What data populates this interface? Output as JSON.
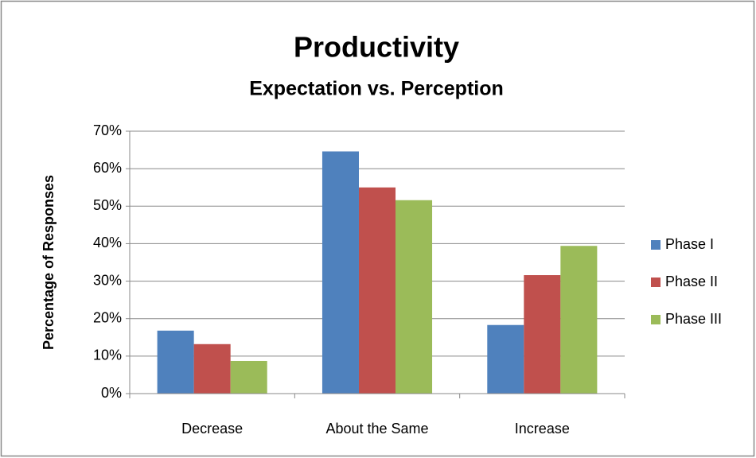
{
  "chart_data": {
    "type": "bar",
    "title": "Productivity",
    "subtitle": "Expectation vs. Perception",
    "y_label": "Percentage of Responses",
    "categories": [
      "Decrease",
      "About the Same",
      "Increase"
    ],
    "series": [
      {
        "name": "Phase I",
        "color": "#4f81bd",
        "values": [
          16.8,
          64.6,
          18.3
        ]
      },
      {
        "name": "Phase II",
        "color": "#c0504d",
        "values": [
          13.2,
          55.0,
          31.6
        ]
      },
      {
        "name": "Phase III",
        "color": "#9bbb59",
        "values": [
          8.7,
          51.6,
          39.4
        ]
      }
    ],
    "ylim": [
      0,
      70
    ],
    "yticks": [
      {
        "value": 0,
        "label": "0%"
      },
      {
        "value": 10,
        "label": "10%"
      },
      {
        "value": 20,
        "label": "20%"
      },
      {
        "value": 30,
        "label": "30%"
      },
      {
        "value": 40,
        "label": "40%"
      },
      {
        "value": 50,
        "label": "50%"
      },
      {
        "value": 60,
        "label": "60%"
      },
      {
        "value": 70,
        "label": "70%"
      }
    ],
    "grid": true,
    "legend": "right"
  }
}
